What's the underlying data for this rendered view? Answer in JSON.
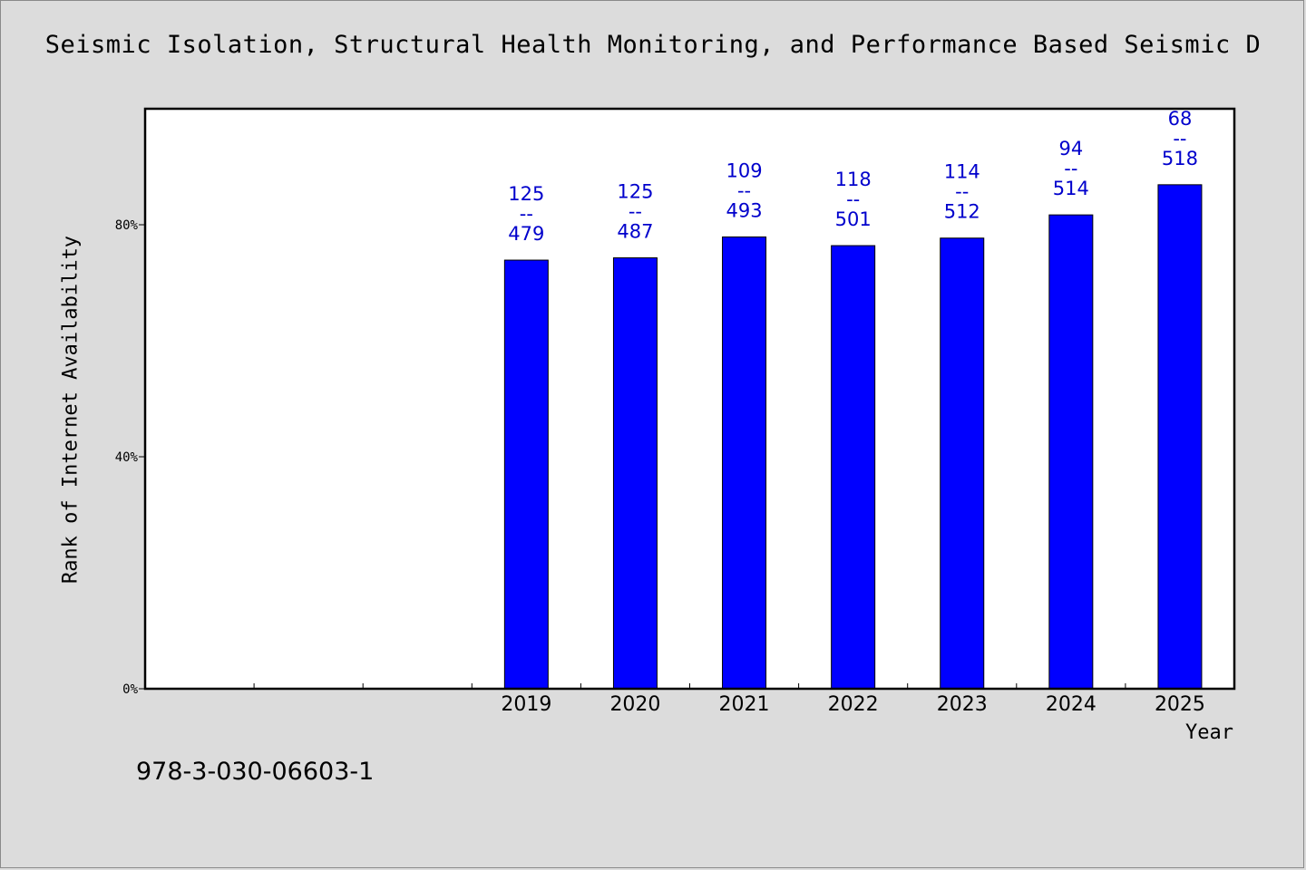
{
  "chart_data": {
    "type": "bar",
    "title": "Seismic Isolation, Structural Health Monitoring, and Performance Based Seismic D",
    "xlabel": "Year",
    "ylabel": "Rank of Internet Availability",
    "categories": [
      "",
      "",
      "",
      "2019",
      "2020",
      "2021",
      "2022",
      "2023",
      "2024",
      "2025"
    ],
    "values": [
      null,
      null,
      null,
      73.9,
      74.3,
      77.9,
      76.4,
      77.7,
      81.7,
      86.9
    ],
    "bar_labels": [
      null,
      null,
      null,
      {
        "rank": "125",
        "sep": "--",
        "total": "479"
      },
      {
        "rank": "125",
        "sep": "--",
        "total": "487"
      },
      {
        "rank": "109",
        "sep": "--",
        "total": "493"
      },
      {
        "rank": "118",
        "sep": "--",
        "total": "501"
      },
      {
        "rank": "114",
        "sep": "--",
        "total": "512"
      },
      {
        "rank": "94",
        "sep": "--",
        "total": "514"
      },
      {
        "rank": "68",
        "sep": "--",
        "total": "518"
      }
    ],
    "ylim": [
      0,
      100
    ],
    "yticks": [
      {
        "value": 0,
        "label": "0%"
      },
      {
        "value": 40,
        "label": "40%"
      },
      {
        "value": 80,
        "label": "80%"
      }
    ],
    "grid": false,
    "bar_color": "#0000ff",
    "label_color": "#0000cc"
  },
  "footer": {
    "isbn": "978-3-030-06603-1"
  }
}
